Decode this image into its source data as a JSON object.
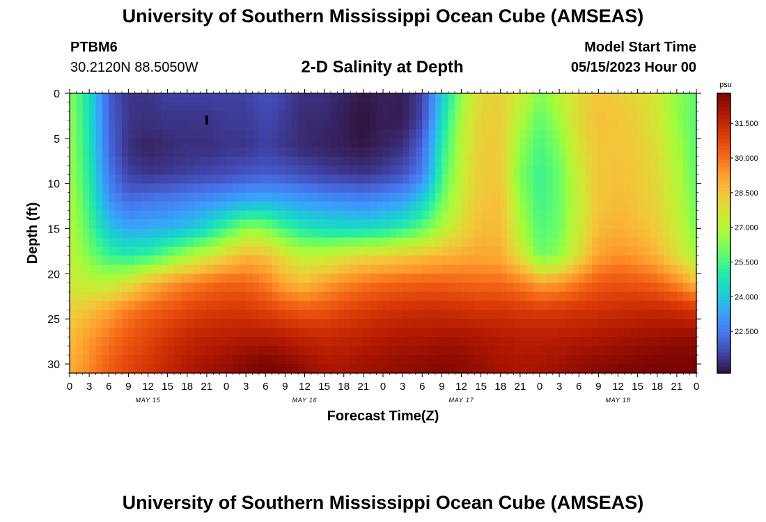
{
  "header": {
    "title": "University of Southern Mississippi Ocean Cube (AMSEAS)",
    "station_id": "PTBM6",
    "station_coords": "30.2120N  88.5050W",
    "plot_title": "2-D Salinity at Depth",
    "model_start_label": "Model Start Time",
    "model_start_value": "05/15/2023 Hour 00"
  },
  "footer": {
    "title": "University of Southern Mississippi Ocean Cube (AMSEAS)"
  },
  "colors": {
    "colormap": [
      "#30123b",
      "#4145ab",
      "#4675ed",
      "#39a2fc",
      "#1bcfd4",
      "#24eca6",
      "#61fc6c",
      "#a4fc3b",
      "#d1e834",
      "#f3c63a",
      "#fe9b2d",
      "#f36315",
      "#d93806",
      "#b11901",
      "#7a0402"
    ]
  },
  "chart_data": {
    "type": "heatmap",
    "title": "2-D Salinity at Depth",
    "xlabel": "Forecast Time(Z)",
    "ylabel": "Depth (ft)",
    "x_tick_labels": [
      "0",
      "3",
      "6",
      "9",
      "12",
      "15",
      "18",
      "21",
      "0",
      "3",
      "6",
      "9",
      "12",
      "15",
      "18",
      "21",
      "0",
      "3",
      "6",
      "9",
      "12",
      "15",
      "18",
      "21",
      "0",
      "3",
      "6",
      "9",
      "12",
      "15",
      "18",
      "21",
      "0"
    ],
    "x_range_hours": [
      0,
      96
    ],
    "date_labels": [
      {
        "label": "MAY 15",
        "hour": 12
      },
      {
        "label": "MAY 16",
        "hour": 36
      },
      {
        "label": "MAY 17",
        "hour": 60
      },
      {
        "label": "MAY 18",
        "hour": 84
      }
    ],
    "y_ticks": [
      0,
      5,
      10,
      15,
      20,
      25,
      30
    ],
    "y_range_ft": [
      0,
      31
    ],
    "y_inverted": true,
    "colorbar": {
      "unit": "psu",
      "range": [
        20.7,
        32.8
      ],
      "tick_labels": [
        "31.500",
        "30.000",
        "28.500",
        "27.000",
        "25.500",
        "24.000",
        "22.500"
      ]
    },
    "marker": {
      "hour": 21,
      "depth_ft": 3
    },
    "time_hours": [
      0,
      3,
      6,
      9,
      12,
      15,
      18,
      21,
      24,
      27,
      30,
      33,
      36,
      39,
      42,
      45,
      48,
      51,
      54,
      57,
      60,
      63,
      66,
      69,
      72,
      75,
      78,
      81,
      84,
      87,
      90,
      93,
      96
    ],
    "depths_ft": [
      0,
      3,
      6,
      9,
      12,
      15,
      18,
      21,
      24,
      27,
      30,
      31
    ],
    "salinity_psu": [
      [
        26.5,
        24.5,
        22.0,
        21.3,
        21.3,
        21.5,
        21.5,
        21.5,
        21.5,
        21.5,
        21.8,
        21.5,
        21.2,
        21.2,
        21.0,
        20.8,
        21.0,
        20.9,
        21.5,
        24.0,
        26.5,
        28.0,
        28.2,
        27.5,
        26.3,
        27.2,
        28.0,
        28.5,
        28.3,
        28.0,
        27.5,
        26.5,
        25.8
      ],
      [
        26.6,
        24.6,
        22.1,
        21.3,
        21.2,
        21.3,
        21.3,
        21.3,
        21.4,
        21.4,
        21.6,
        21.4,
        21.1,
        21.1,
        20.9,
        20.7,
        20.9,
        20.9,
        21.6,
        24.5,
        27.0,
        28.2,
        28.3,
        27.0,
        25.8,
        26.8,
        28.0,
        28.6,
        28.5,
        28.2,
        27.6,
        26.5,
        25.7
      ],
      [
        26.7,
        24.7,
        22.2,
        21.2,
        21.0,
        21.1,
        21.2,
        21.2,
        21.3,
        21.3,
        21.5,
        21.3,
        21.1,
        21.0,
        20.9,
        20.8,
        21.0,
        21.2,
        22.2,
        25.0,
        27.2,
        28.3,
        28.3,
        26.5,
        25.5,
        26.3,
        27.8,
        28.5,
        28.5,
        28.3,
        27.8,
        26.8,
        25.7
      ],
      [
        26.8,
        24.9,
        22.5,
        21.5,
        21.3,
        21.4,
        21.5,
        21.6,
        21.7,
        21.9,
        22.0,
        21.9,
        21.7,
        21.5,
        21.4,
        21.3,
        21.5,
        21.8,
        22.6,
        25.4,
        27.4,
        28.4,
        28.4,
        26.2,
        25.3,
        26.0,
        27.5,
        28.5,
        28.6,
        28.4,
        28.0,
        27.0,
        25.8
      ],
      [
        27.0,
        25.2,
        23.0,
        22.3,
        22.5,
        22.6,
        22.8,
        23.0,
        23.2,
        23.5,
        23.6,
        23.4,
        23.2,
        23.0,
        22.9,
        22.8,
        23.0,
        23.3,
        24.2,
        26.0,
        27.6,
        28.5,
        28.6,
        26.6,
        25.4,
        26.0,
        27.4,
        28.5,
        28.7,
        28.5,
        28.1,
        27.2,
        26.0
      ],
      [
        27.1,
        25.6,
        24.0,
        23.4,
        23.5,
        23.6,
        23.9,
        24.5,
        25.5,
        26.5,
        26.3,
        25.4,
        24.8,
        24.6,
        24.5,
        24.5,
        24.7,
        25.1,
        25.9,
        27.0,
        28.0,
        28.7,
        28.7,
        27.0,
        25.6,
        26.1,
        27.5,
        28.7,
        28.9,
        28.7,
        28.3,
        27.4,
        26.2
      ],
      [
        27.3,
        26.2,
        25.3,
        25.0,
        25.3,
        26.0,
        26.8,
        27.5,
        28.2,
        28.8,
        28.6,
        27.8,
        27.2,
        27.3,
        27.7,
        28.0,
        28.2,
        28.4,
        28.6,
        28.8,
        29.0,
        29.1,
        29.0,
        27.8,
        26.0,
        26.5,
        28.0,
        29.2,
        29.5,
        29.3,
        28.8,
        27.9,
        26.7
      ],
      [
        27.6,
        27.2,
        27.2,
        27.8,
        28.7,
        29.3,
        29.7,
        30.0,
        30.2,
        30.2,
        29.8,
        29.0,
        28.7,
        29.2,
        29.6,
        29.9,
        30.1,
        30.2,
        30.3,
        30.3,
        30.2,
        30.1,
        30.1,
        29.8,
        29.2,
        29.3,
        29.9,
        30.4,
        30.5,
        30.4,
        30.2,
        29.6,
        28.7
      ],
      [
        28.2,
        28.6,
        29.2,
        29.8,
        30.2,
        30.5,
        30.8,
        31.0,
        31.1,
        31.1,
        30.9,
        30.6,
        30.4,
        30.5,
        30.8,
        31.0,
        31.2,
        31.3,
        31.4,
        31.4,
        31.3,
        31.2,
        31.2,
        31.1,
        31.0,
        31.1,
        31.2,
        31.3,
        31.4,
        31.5,
        31.5,
        31.4,
        31.2
      ],
      [
        28.6,
        29.3,
        29.9,
        30.4,
        30.8,
        31.2,
        31.5,
        31.7,
        31.8,
        31.9,
        31.9,
        31.8,
        31.6,
        31.5,
        31.6,
        31.7,
        31.9,
        32.0,
        32.0,
        32.1,
        32.1,
        32.0,
        31.9,
        31.8,
        31.8,
        31.8,
        31.9,
        32.0,
        32.1,
        32.2,
        32.3,
        32.4,
        32.4
      ],
      [
        28.9,
        29.6,
        30.3,
        30.8,
        31.1,
        31.5,
        31.9,
        32.1,
        32.3,
        32.6,
        32.8,
        32.6,
        32.3,
        32.0,
        32.0,
        32.2,
        32.3,
        32.4,
        32.5,
        32.6,
        32.5,
        32.3,
        32.1,
        32.0,
        32.1,
        32.2,
        32.4,
        32.5,
        32.6,
        32.7,
        32.8,
        32.8,
        32.8
      ],
      [
        29.0,
        29.7,
        30.3,
        30.8,
        31.2,
        31.6,
        31.9,
        32.2,
        32.4,
        32.6,
        32.8,
        32.7,
        32.4,
        32.1,
        32.1,
        32.2,
        32.3,
        32.4,
        32.5,
        32.6,
        32.5,
        32.4,
        32.2,
        32.1,
        32.1,
        32.3,
        32.4,
        32.6,
        32.7,
        32.8,
        32.8,
        32.8,
        32.8
      ]
    ]
  }
}
